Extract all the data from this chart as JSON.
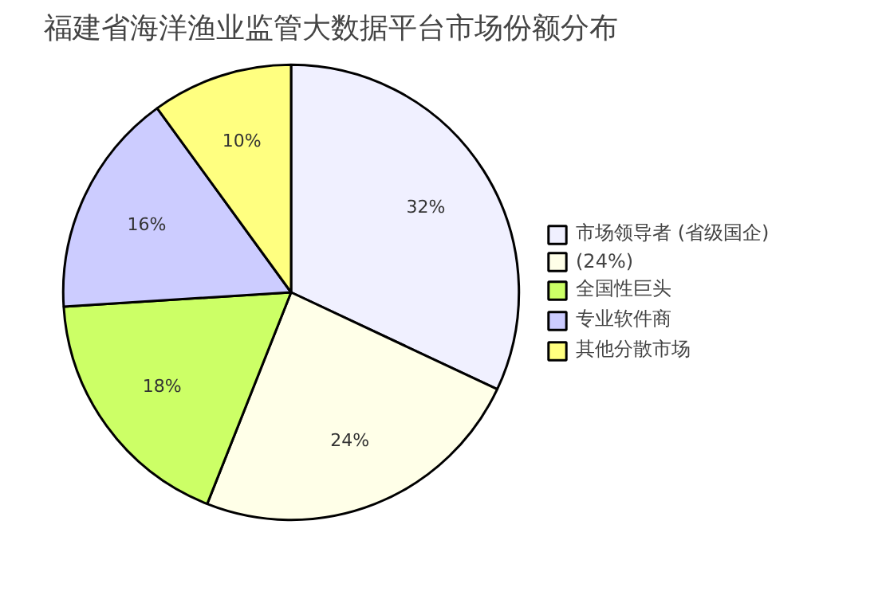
{
  "chart_data": {
    "type": "pie",
    "title": "福建省海洋渔业监管大数据平台市场份额分布",
    "categories": [
      "市场领导者 (省级国企)",
      "(24%)",
      "全国性巨头",
      "专业软件商",
      "其他分散市场"
    ],
    "values": [
      32,
      24,
      18,
      16,
      10
    ],
    "colors": [
      "#f0f0ff",
      "#ffffe8",
      "#ccff66",
      "#ccccff",
      "#ffff80"
    ],
    "value_labels": [
      "32%",
      "24%",
      "18%",
      "16%",
      "10%"
    ],
    "legend": "right"
  }
}
